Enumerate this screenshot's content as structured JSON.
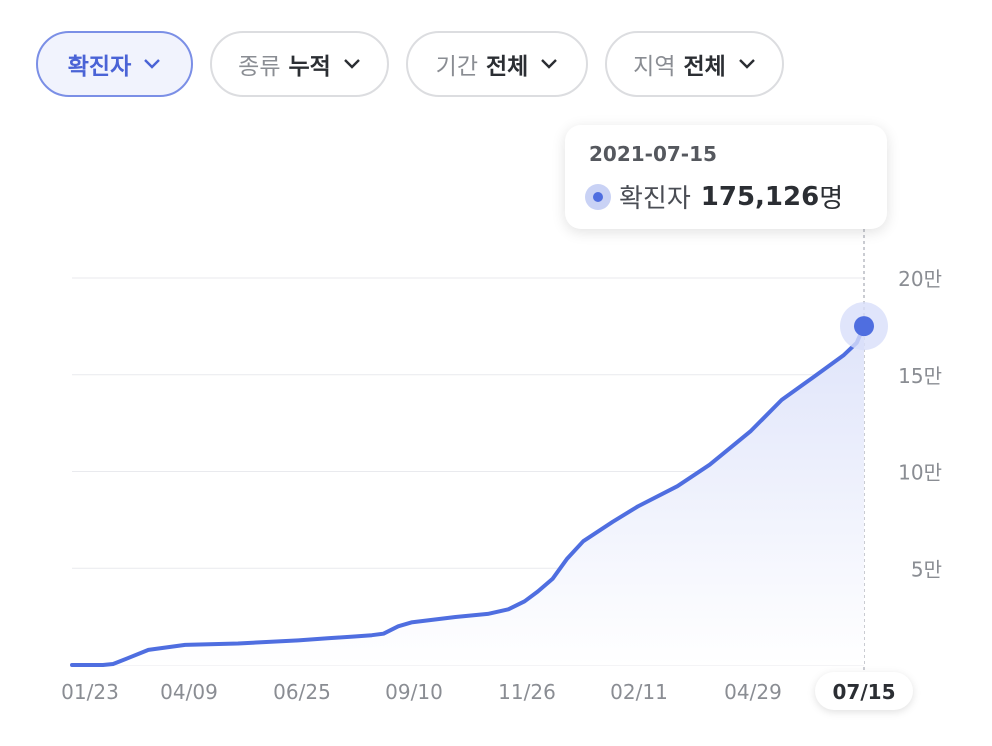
{
  "filters": [
    {
      "label": "확진자",
      "value": ""
    },
    {
      "label": "종류",
      "value": "누적"
    },
    {
      "label": "기간",
      "value": "전체"
    },
    {
      "label": "지역",
      "value": "전체"
    }
  ],
  "tooltip": {
    "date": "2021-07-15",
    "series_label": "확진자",
    "value": "175,126",
    "unit": "명"
  },
  "colors": {
    "line": "#4f6ee0",
    "area_top": "#dfe4fa",
    "grid": "#e9eaee",
    "accent": "#4a63d6"
  },
  "chart_data": {
    "type": "area",
    "series": [
      {
        "name": "확진자",
        "color": "#4f6ee0"
      }
    ],
    "x": [
      "2020-01-23",
      "2020-02-13",
      "2020-02-20",
      "2020-03-01",
      "2020-03-15",
      "2020-04-09",
      "2020-05-15",
      "2020-06-25",
      "2020-07-15",
      "2020-08-01",
      "2020-08-14",
      "2020-08-22",
      "2020-09-01",
      "2020-09-10",
      "2020-10-10",
      "2020-11-01",
      "2020-11-15",
      "2020-11-26",
      "2020-12-05",
      "2020-12-15",
      "2020-12-25",
      "2021-01-05",
      "2021-01-25",
      "2021-02-11",
      "2021-03-10",
      "2021-04-01",
      "2021-04-29",
      "2021-05-20",
      "2021-06-10",
      "2021-07-01",
      "2021-07-10",
      "2021-07-15"
    ],
    "y": [
      0,
      0,
      500,
      3500,
      7800,
      10400,
      11100,
      12700,
      13800,
      14700,
      15400,
      16200,
      20000,
      22000,
      24800,
      26400,
      28800,
      32900,
      38000,
      44500,
      55000,
      64000,
      74000,
      81900,
      92400,
      103500,
      121000,
      137000,
      148500,
      160000,
      166500,
      175126
    ],
    "xticks": [
      "01/23",
      "04/09",
      "06/25",
      "09/10",
      "11/26",
      "02/11",
      "04/29",
      "07/15"
    ],
    "highlight_xtick": "07/15",
    "yticks": [
      {
        "value": 50000,
        "label": "5만"
      },
      {
        "value": 100000,
        "label": "10만"
      },
      {
        "value": 150000,
        "label": "15만"
      },
      {
        "value": 200000,
        "label": "20만"
      }
    ],
    "ylim": [
      0,
      200000
    ],
    "grid": true,
    "highlight_point": {
      "x": "2021-07-15",
      "y": 175126
    }
  }
}
